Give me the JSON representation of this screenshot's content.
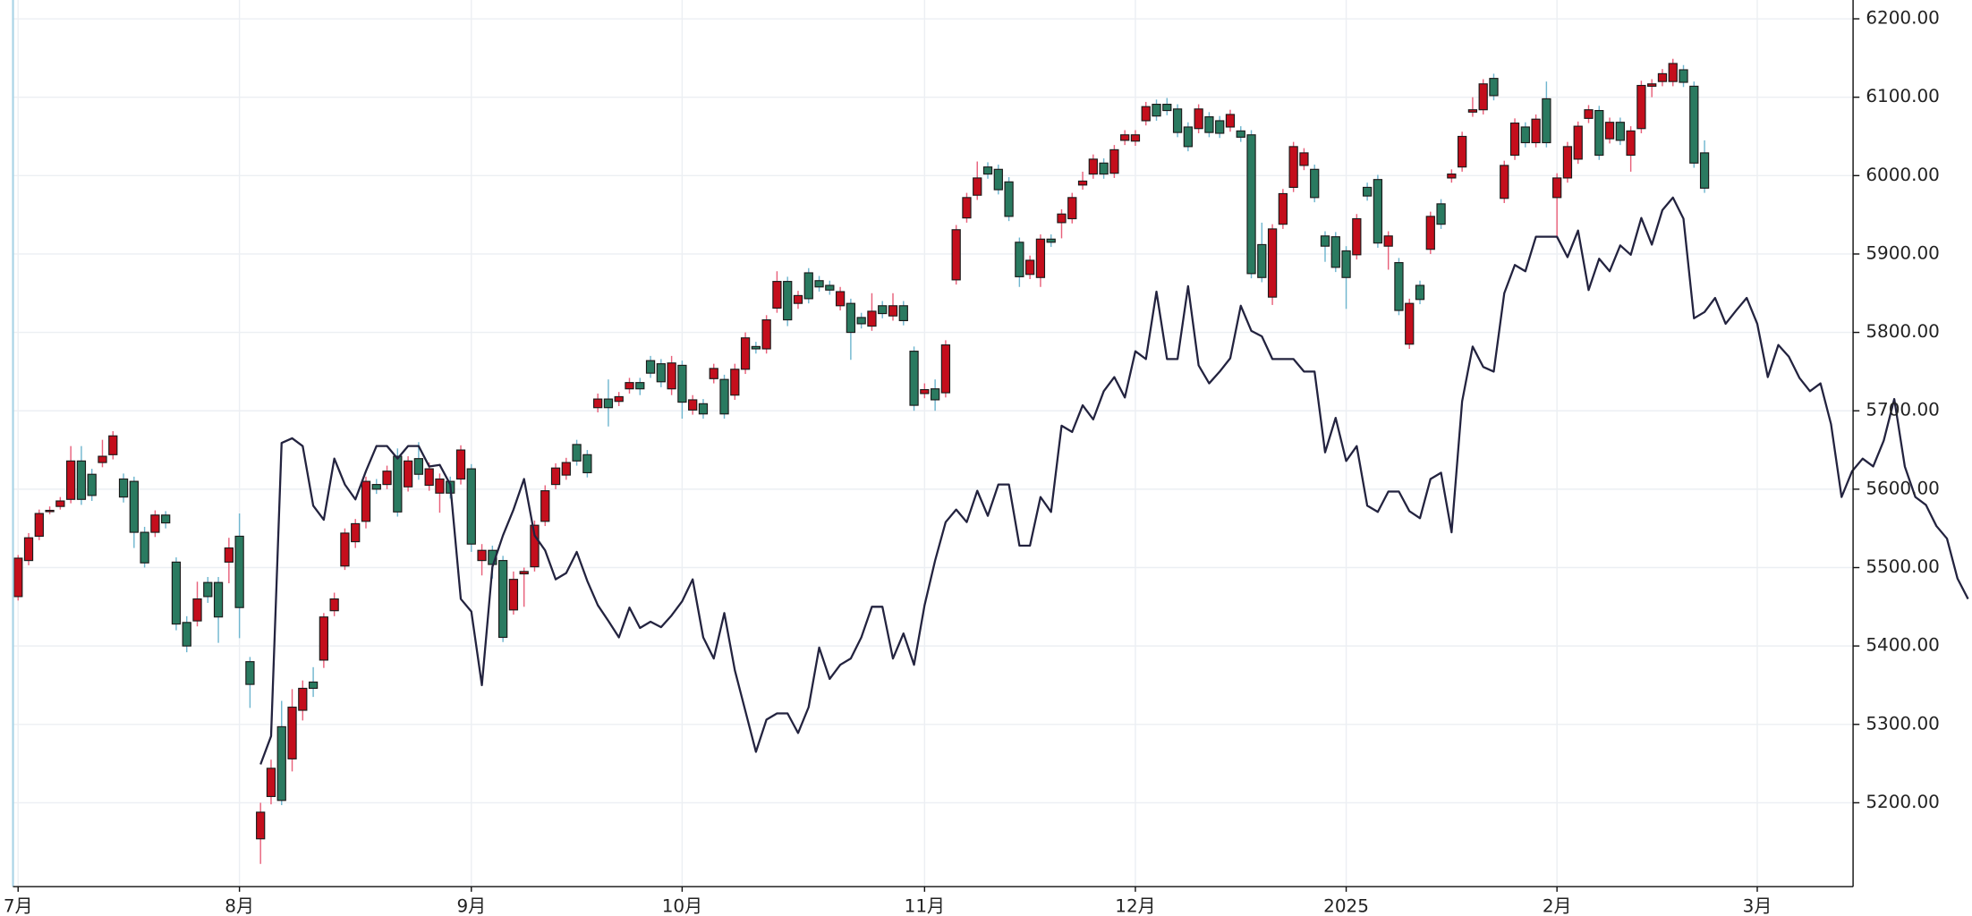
{
  "chart_data": {
    "type": "candlestick",
    "categories": [
      "7月",
      null,
      null,
      null,
      null,
      null,
      null,
      null,
      null,
      null,
      null,
      null,
      null,
      null,
      null,
      null,
      null,
      null,
      null,
      null,
      null,
      "8月",
      null,
      null,
      null,
      null,
      null,
      null,
      null,
      null,
      null,
      null,
      null,
      null,
      null,
      null,
      null,
      null,
      null,
      null,
      null,
      null,
      null,
      "9月",
      null,
      null,
      null,
      null,
      null,
      null,
      null,
      null,
      null,
      null,
      null,
      null,
      null,
      null,
      null,
      null,
      null,
      null,
      null,
      "10月",
      null,
      null,
      null,
      null,
      null,
      null,
      null,
      null,
      null,
      null,
      null,
      null,
      null,
      null,
      null,
      null,
      null,
      null,
      null,
      null,
      null,
      null,
      "11月",
      null,
      null,
      null,
      null,
      null,
      null,
      null,
      null,
      null,
      null,
      null,
      null,
      null,
      null,
      null,
      null,
      null,
      null,
      null,
      "12月",
      null,
      null,
      null,
      null,
      null,
      null,
      null,
      null,
      null,
      null,
      null,
      null,
      null,
      null,
      null,
      null,
      null,
      null,
      null,
      "2025",
      null,
      null,
      null,
      null,
      null,
      null,
      null,
      null,
      null,
      null,
      null,
      null,
      null,
      null,
      null,
      null,
      null,
      null,
      null,
      "2月",
      null,
      null,
      null,
      null,
      null,
      null,
      null,
      null,
      null,
      null,
      null,
      null,
      null,
      null,
      null,
      null,
      null,
      null,
      "3月",
      null,
      null,
      null,
      null,
      null,
      null,
      null,
      null,
      null,
      null,
      null,
      null,
      null,
      null,
      null,
      null,
      null,
      null,
      null,
      null
    ],
    "open": [
      5463,
      5509,
      5540,
      5573,
      5578,
      5587,
      5636,
      5619,
      5634,
      5644,
      5613,
      5610,
      5545,
      5545,
      5567,
      5507,
      5430,
      5432,
      5481,
      5481,
      5507,
      5540,
      5380,
      5154,
      5208,
      5297,
      5256,
      5318,
      5354,
      5382,
      5445,
      5502,
      5533,
      5559,
      5606,
      5606,
      5642,
      5603,
      5639,
      5605,
      5595,
      5610,
      5613,
      5626,
      5509,
      5522,
      5509,
      5446,
      5492,
      5501,
      5559,
      5606,
      5618,
      5657,
      5644,
      5704,
      5715,
      5712,
      5728,
      5736,
      5764,
      5760,
      5728,
      5758,
      5701,
      5709,
      5741,
      5740,
      5720,
      5753,
      5782,
      5779,
      5831,
      5865,
      5837,
      5876,
      5866,
      5860,
      5834,
      5837,
      5819,
      5808,
      5834,
      5821,
      5834,
      5776,
      5722,
      5728,
      5723,
      5867,
      5946,
      5975,
      6011,
      6008,
      5992,
      5915,
      5874,
      5870,
      5919,
      5940,
      5945,
      5988,
      6002,
      6016,
      6003,
      6045,
      6044,
      6070,
      6091,
      6091,
      6085,
      6062,
      6060,
      6075,
      6070,
      6062,
      6057,
      6052,
      5912,
      5845,
      5938,
      5985,
      6013,
      6008,
      5923,
      5922,
      5904,
      5899,
      5985,
      5995,
      5910,
      5889,
      5785,
      5860,
      5906,
      5964,
      5997,
      6011,
      6081,
      6084,
      6124,
      5971,
      6026,
      6062,
      6042,
      6098,
      5972,
      5997,
      6021,
      6073,
      6083,
      6047,
      6068,
      6026,
      6060,
      6114,
      6120,
      6120,
      6135,
      6114,
      6029,
      null,
      null,
      null,
      null,
      null,
      null,
      null,
      null,
      null,
      null,
      null,
      null,
      null,
      null,
      null,
      null,
      null,
      null,
      null,
      null,
      null,
      null,
      null,
      null,
      null
    ],
    "high": [
      5516,
      5544,
      5574,
      5578,
      5590,
      5655,
      5655,
      5626,
      5663,
      5674,
      5620,
      5616,
      5552,
      5573,
      5572,
      5513,
      5438,
      5482,
      5488,
      5488,
      5538,
      5569,
      5386,
      5200,
      5255,
      5330,
      5345,
      5356,
      5373,
      5442,
      5468,
      5550,
      5562,
      5616,
      5613,
      5630,
      5652,
      5642,
      5660,
      5634,
      5620,
      5616,
      5656,
      5632,
      5530,
      5528,
      5515,
      5495,
      5500,
      5560,
      5605,
      5633,
      5640,
      5663,
      5650,
      5722,
      5740,
      5724,
      5742,
      5742,
      5770,
      5766,
      5770,
      5764,
      5720,
      5715,
      5760,
      5746,
      5760,
      5800,
      5788,
      5822,
      5878,
      5871,
      5853,
      5882,
      5872,
      5866,
      5858,
      5843,
      5825,
      5850,
      5840,
      5850,
      5840,
      5782,
      5735,
      5740,
      5790,
      5937,
      5978,
      6018,
      6017,
      6014,
      5998,
      5921,
      5898,
      5925,
      5925,
      5957,
      5978,
      6005,
      6027,
      6022,
      6039,
      6058,
      6058,
      6094,
      6097,
      6099,
      6091,
      6068,
      6091,
      6081,
      6076,
      6084,
      6063,
      6058,
      5940,
      5938,
      5983,
      6043,
      6035,
      6014,
      5929,
      5928,
      5910,
      5951,
      5991,
      6001,
      5929,
      5895,
      5843,
      5866,
      5954,
      5970,
      6008,
      6056,
      6100,
      6123,
      6130,
      6019,
      6073,
      6068,
      6078,
      6120,
      6003,
      6043,
      6069,
      6090,
      6089,
      6074,
      6074,
      6063,
      6121,
      6123,
      6136,
      6149,
      6141,
      6120,
      6045,
      null,
      null,
      null,
      null,
      null,
      null,
      null,
      null,
      null,
      null,
      null,
      null,
      null,
      null,
      null,
      null,
      null,
      null,
      null,
      null,
      null,
      null,
      null,
      null,
      null
    ],
    "low": [
      5458,
      5503,
      5535,
      5568,
      5574,
      5582,
      5580,
      5585,
      5628,
      5638,
      5583,
      5525,
      5500,
      5539,
      5550,
      5420,
      5392,
      5425,
      5455,
      5404,
      5480,
      5410,
      5321,
      5122,
      5198,
      5197,
      5240,
      5305,
      5335,
      5372,
      5438,
      5497,
      5525,
      5550,
      5594,
      5600,
      5565,
      5597,
      5612,
      5598,
      5570,
      5588,
      5606,
      5520,
      5490,
      5486,
      5405,
      5440,
      5450,
      5495,
      5553,
      5600,
      5612,
      5630,
      5615,
      5698,
      5680,
      5706,
      5722,
      5720,
      5742,
      5730,
      5720,
      5690,
      5695,
      5690,
      5735,
      5690,
      5714,
      5747,
      5773,
      5773,
      5825,
      5808,
      5830,
      5837,
      5852,
      5848,
      5828,
      5765,
      5805,
      5802,
      5818,
      5815,
      5809,
      5700,
      5716,
      5700,
      5717,
      5861,
      5940,
      5969,
      5996,
      5976,
      5942,
      5858,
      5868,
      5858,
      5909,
      5920,
      5939,
      5982,
      5996,
      5996,
      5997,
      6039,
      6038,
      6064,
      6070,
      6077,
      6049,
      6031,
      6054,
      6049,
      6048,
      6056,
      6043,
      5869,
      5864,
      5835,
      5932,
      5979,
      6007,
      5966,
      5890,
      5877,
      5830,
      5893,
      5968,
      5908,
      5880,
      5822,
      5779,
      5836,
      5900,
      5932,
      5991,
      6005,
      6075,
      6078,
      6096,
      5965,
      6020,
      6036,
      6036,
      6036,
      5920,
      5991,
      6015,
      6067,
      6020,
      6041,
      6039,
      6005,
      6054,
      6100,
      6114,
      6114,
      6113,
      6010,
      5978,
      null,
      null,
      null,
      null,
      null,
      null,
      null,
      null,
      null,
      null,
      null,
      null,
      null,
      null,
      null,
      null,
      null,
      null,
      null,
      null,
      null,
      null,
      null,
      null,
      null
    ],
    "close": [
      5512,
      5538,
      5569,
      5573,
      5585,
      5636,
      5587,
      5592,
      5642,
      5668,
      5590,
      5545,
      5506,
      5567,
      5557,
      5428,
      5400,
      5460,
      5463,
      5437,
      5525,
      5449,
      5351,
      5188,
      5244,
      5203,
      5322,
      5346,
      5346,
      5437,
      5460,
      5544,
      5556,
      5610,
      5600,
      5623,
      5571,
      5636,
      5619,
      5626,
      5613,
      5595,
      5650,
      5530,
      5522,
      5504,
      5411,
      5485,
      5495,
      5554,
      5598,
      5627,
      5634,
      5636,
      5621,
      5715,
      5704,
      5718,
      5736,
      5728,
      5748,
      5737,
      5761,
      5711,
      5714,
      5696,
      5754,
      5696,
      5753,
      5793,
      5779,
      5816,
      5865,
      5816,
      5847,
      5843,
      5858,
      5854,
      5852,
      5800,
      5811,
      5827,
      5824,
      5834,
      5815,
      5707,
      5727,
      5714,
      5784,
      5931,
      5972,
      5997,
      6002,
      5982,
      5948,
      5871,
      5892,
      5919,
      5915,
      5951,
      5972,
      5993,
      6021,
      6002,
      6033,
      6052,
      6052,
      6088,
      6076,
      6083,
      6055,
      6037,
      6085,
      6055,
      6054,
      6078,
      6049,
      5875,
      5870,
      5932,
      5977,
      6037,
      6029,
      5972,
      5910,
      5883,
      5870,
      5945,
      5974,
      5914,
      5923,
      5828,
      5837,
      5842,
      5948,
      5938,
      6002,
      6050,
      6084,
      6117,
      6102,
      6013,
      6067,
      6042,
      6072,
      6042,
      5997,
      6037,
      6063,
      6084,
      6026,
      6068,
      6045,
      6057,
      6115,
      6117,
      6130,
      6143,
      6119,
      6016,
      5984,
      null,
      null,
      null,
      null,
      null,
      null,
      null,
      null,
      null,
      null,
      null,
      null,
      null,
      null,
      null,
      null,
      null,
      null,
      null,
      null,
      null,
      null,
      null,
      null,
      null
    ],
    "line": {
      "color": "#23233f",
      "values": [
        null,
        null,
        null,
        null,
        null,
        null,
        null,
        null,
        null,
        null,
        null,
        null,
        null,
        null,
        null,
        null,
        null,
        null,
        null,
        null,
        null,
        null,
        null,
        5249,
        5285,
        5659,
        5665,
        5655,
        5579,
        5561,
        5639,
        5606,
        5587,
        5623,
        5655,
        5655,
        5639,
        5655,
        5655,
        5629,
        5631,
        5606,
        5460,
        5444,
        5350,
        5501,
        5541,
        5574,
        5613,
        5541,
        5522,
        5485,
        5493,
        5520,
        5483,
        5452,
        5432,
        5411,
        5449,
        5423,
        5431,
        5424,
        5439,
        5457,
        5485,
        5411,
        5384,
        5442,
        5369,
        5317,
        5265,
        5306,
        5314,
        5314,
        5289,
        5322,
        5398,
        5358,
        5376,
        5384,
        5411,
        5450,
        5450,
        5384,
        5416,
        5376,
        5452,
        5509,
        5558,
        5574,
        5558,
        5598,
        5566,
        5606,
        5606,
        5528,
        5528,
        5590,
        5571,
        5681,
        5673,
        5707,
        5689,
        5725,
        5743,
        5717,
        5776,
        5766,
        5852,
        5766,
        5766,
        5859,
        5758,
        5735,
        5750,
        5767,
        5834,
        5802,
        5795,
        5766,
        5766,
        5766,
        5750,
        5750,
        5647,
        5691,
        5636,
        5655,
        5579,
        5571,
        5597,
        5597,
        5572,
        5563,
        5613,
        5621,
        5545,
        5712,
        5782,
        5756,
        5750,
        5850,
        5886,
        5878,
        5922,
        5922,
        5922,
        5896,
        5930,
        5854,
        5894,
        5878,
        5911,
        5899,
        5946,
        5912,
        5956,
        5972,
        5945,
        5818,
        5826,
        5844,
        5811,
        5828,
        5844,
        5811,
        5743,
        5784,
        5769,
        5742,
        5725,
        5735,
        5683,
        5590,
        5623,
        5639,
        5629,
        5662,
        5715,
        5629,
        5590,
        5580,
        5553,
        5537,
        5486,
        5460
      ]
    },
    "up_color": "#c40e1c",
    "down_color": "#2a7a60",
    "up_wick_color": "#e8607a",
    "down_wick_color": "#6fb6cf",
    "ylim": [
      5093,
      6224
    ],
    "yticks": [
      {
        "value": 5200,
        "label": "5200.00"
      },
      {
        "value": 5300,
        "label": "5300.00"
      },
      {
        "value": 5400,
        "label": "5400.00"
      },
      {
        "value": 5500,
        "label": "5500.00"
      },
      {
        "value": 5600,
        "label": "5600.00"
      },
      {
        "value": 5700,
        "label": "5700.00"
      },
      {
        "value": 5800,
        "label": "5800.00"
      },
      {
        "value": 5900,
        "label": "5900.00"
      },
      {
        "value": 6000,
        "label": "6000.00"
      },
      {
        "value": 6100,
        "label": "6100.00"
      },
      {
        "value": 6200,
        "label": "6200.00"
      }
    ],
    "grid": true
  }
}
